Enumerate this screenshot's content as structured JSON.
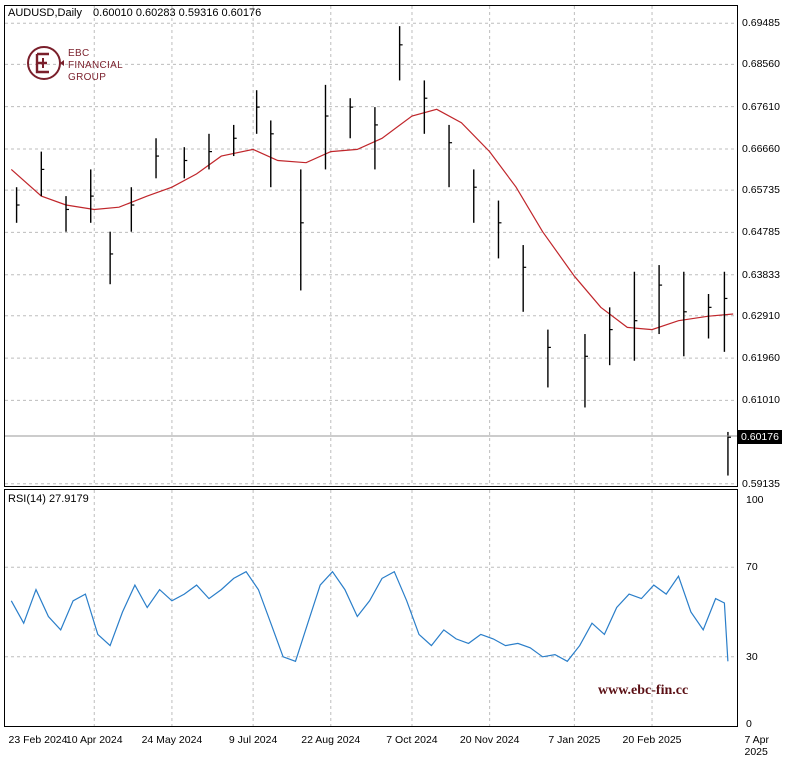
{
  "header": {
    "symbol": "AUDUSD,Daily",
    "ohlc": "0.60010 0.60283 0.59316 0.60176"
  },
  "logo": {
    "line1": "EBC",
    "line2": "FINANCIAL",
    "line3": "GROUP",
    "color": "#7a1f2b"
  },
  "last_price_label": "0.60176",
  "rsi_header": "RSI(14) 27.9179",
  "watermark": "www.ebc-fin.cc",
  "chart_data": [
    {
      "type": "line",
      "title": "AUDUSD,Daily",
      "ohlc_readout": "0.60010 0.60283 0.59316 0.60176",
      "y_ticks": [
        "0.69485",
        "0.68560",
        "0.67610",
        "0.66660",
        "0.65735",
        "0.64785",
        "0.63833",
        "0.62910",
        "0.61960",
        "0.61010",
        "0.60176",
        "0.59135"
      ],
      "ylim": [
        0.5913,
        0.6985
      ],
      "x_ticks": [
        "23 Feb 2024",
        "10 Apr 2024",
        "24 May 2024",
        "9 Jul 2024",
        "22 Aug 2024",
        "7 Oct 2024",
        "20 Nov 2024",
        "7 Jan 2025",
        "20 Feb 2025",
        "7 Apr 2025"
      ],
      "grid": true,
      "series": [
        {
          "style": "bars",
          "color": "#000000",
          "x": [
            "2024-02-26",
            "2024-03-11",
            "2024-03-25",
            "2024-04-08",
            "2024-04-19",
            "2024-05-01",
            "2024-05-15",
            "2024-05-31",
            "2024-06-14",
            "2024-06-28",
            "2024-07-11",
            "2024-07-19",
            "2024-08-05",
            "2024-08-19",
            "2024-09-02",
            "2024-09-16",
            "2024-09-30",
            "2024-10-14",
            "2024-10-28",
            "2024-11-11",
            "2024-11-25",
            "2024-12-09",
            "2024-12-23",
            "2025-01-13",
            "2025-01-27",
            "2025-02-10",
            "2025-02-24",
            "2025-03-10",
            "2025-03-24",
            "2025-04-02",
            "2025-04-04"
          ],
          "close": [
            0.654,
            0.662,
            0.653,
            0.656,
            0.643,
            0.654,
            0.665,
            0.664,
            0.666,
            0.669,
            0.676,
            0.67,
            0.65,
            0.674,
            0.676,
            0.672,
            0.69,
            0.678,
            0.668,
            0.658,
            0.65,
            0.64,
            0.622,
            0.62,
            0.626,
            0.628,
            0.636,
            0.63,
            0.631,
            0.633,
            0.6018
          ],
          "high": [
            0.658,
            0.666,
            0.656,
            0.662,
            0.648,
            0.658,
            0.669,
            0.667,
            0.67,
            0.672,
            0.6798,
            0.673,
            0.662,
            0.681,
            0.678,
            0.676,
            0.6942,
            0.682,
            0.672,
            0.662,
            0.655,
            0.645,
            0.626,
            0.625,
            0.631,
            0.639,
            0.6405,
            0.639,
            0.634,
            0.639,
            0.603
          ],
          "low": [
            0.65,
            0.656,
            0.648,
            0.65,
            0.6362,
            0.648,
            0.66,
            0.66,
            0.662,
            0.665,
            0.67,
            0.658,
            0.6348,
            0.662,
            0.669,
            0.662,
            0.682,
            0.67,
            0.658,
            0.65,
            0.642,
            0.63,
            0.613,
            0.6085,
            0.618,
            0.619,
            0.625,
            0.62,
            0.624,
            0.621,
            0.5932
          ]
        },
        {
          "style": "line",
          "color": "#c0262b",
          "x": [
            "2024-02-23",
            "2024-03-11",
            "2024-03-25",
            "2024-04-10",
            "2024-04-24",
            "2024-05-10",
            "2024-05-24",
            "2024-06-07",
            "2024-06-21",
            "2024-07-09",
            "2024-07-23",
            "2024-08-08",
            "2024-08-22",
            "2024-09-06",
            "2024-09-20",
            "2024-10-07",
            "2024-10-21",
            "2024-11-04",
            "2024-11-20",
            "2024-12-05",
            "2024-12-20",
            "2025-01-07",
            "2025-01-22",
            "2025-02-06",
            "2025-02-20",
            "2025-03-07",
            "2025-03-24",
            "2025-04-07"
          ],
          "y": [
            0.662,
            0.656,
            0.654,
            0.653,
            0.6535,
            0.656,
            0.658,
            0.661,
            0.665,
            0.6665,
            0.664,
            0.6635,
            0.666,
            0.6665,
            0.669,
            0.674,
            0.6755,
            0.6725,
            0.666,
            0.658,
            0.648,
            0.638,
            0.631,
            0.6265,
            0.626,
            0.628,
            0.629,
            0.6295
          ]
        }
      ]
    },
    {
      "type": "line",
      "title": "RSI(14) 27.9179",
      "ylim": [
        0,
        100
      ],
      "y_ticks": [
        "100",
        "70",
        "30",
        "0"
      ],
      "x_ticks": [
        "23 Feb 2024",
        "10 Apr 2024",
        "24 May 2024",
        "9 Jul 2024",
        "22 Aug 2024",
        "7 Oct 2024",
        "20 Nov 2024",
        "7 Jan 2025",
        "20 Feb 2025",
        "7 Apr 2025"
      ],
      "series": [
        {
          "color": "#2a7ec9",
          "x": [
            "2024-02-23",
            "2024-03-01",
            "2024-03-08",
            "2024-03-15",
            "2024-03-22",
            "2024-03-29",
            "2024-04-05",
            "2024-04-12",
            "2024-04-19",
            "2024-04-26",
            "2024-05-03",
            "2024-05-10",
            "2024-05-17",
            "2024-05-24",
            "2024-05-31",
            "2024-06-07",
            "2024-06-14",
            "2024-06-21",
            "2024-06-28",
            "2024-07-05",
            "2024-07-12",
            "2024-07-19",
            "2024-07-26",
            "2024-08-02",
            "2024-08-09",
            "2024-08-16",
            "2024-08-23",
            "2024-08-30",
            "2024-09-06",
            "2024-09-13",
            "2024-09-20",
            "2024-09-27",
            "2024-10-04",
            "2024-10-11",
            "2024-10-18",
            "2024-10-25",
            "2024-11-01",
            "2024-11-08",
            "2024-11-15",
            "2024-11-22",
            "2024-11-29",
            "2024-12-06",
            "2024-12-13",
            "2024-12-20",
            "2024-12-27",
            "2025-01-03",
            "2025-01-10",
            "2025-01-17",
            "2025-01-24",
            "2025-01-31",
            "2025-02-07",
            "2025-02-14",
            "2025-02-21",
            "2025-02-28",
            "2025-03-07",
            "2025-03-14",
            "2025-03-21",
            "2025-03-28",
            "2025-04-02",
            "2025-04-04"
          ],
          "y": [
            55,
            45,
            60,
            48,
            42,
            55,
            58,
            40,
            35,
            50,
            62,
            52,
            60,
            55,
            58,
            62,
            56,
            60,
            65,
            68,
            60,
            45,
            30,
            28,
            45,
            62,
            68,
            60,
            48,
            55,
            65,
            68,
            55,
            40,
            35,
            42,
            38,
            36,
            40,
            38,
            35,
            36,
            34,
            30,
            31,
            28,
            35,
            45,
            40,
            52,
            58,
            56,
            62,
            58,
            66,
            50,
            42,
            56,
            54,
            28
          ]
        }
      ]
    }
  ]
}
